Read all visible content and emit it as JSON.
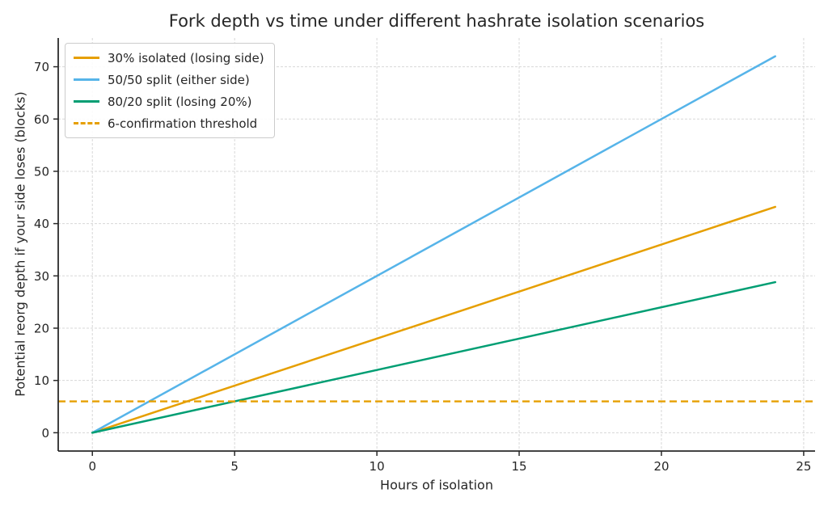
{
  "figure": {
    "title": "Fork depth vs time under different hashrate isolation scenarios"
  },
  "chart_data": {
    "type": "line",
    "title": "Fork depth vs time under different hashrate isolation scenarios",
    "xlabel": "Hours of isolation",
    "ylabel": "Potential reorg depth if your side loses (blocks)",
    "x": [
      0,
      24
    ],
    "series": [
      {
        "name": "30% isolated (losing side)",
        "color": "#E69F00",
        "style": "solid",
        "values": [
          0,
          43.2
        ],
        "blocks_per_hour": 1.8
      },
      {
        "name": "50/50 split (either side)",
        "color": "#56B4E9",
        "style": "solid",
        "values": [
          0,
          72.0
        ],
        "blocks_per_hour": 3.0
      },
      {
        "name": "80/20 split (losing 20%)",
        "color": "#009E73",
        "style": "solid",
        "values": [
          0,
          28.8
        ],
        "blocks_per_hour": 1.2
      }
    ],
    "threshold": {
      "name": "6-confirmation threshold",
      "color": "#E69F00",
      "style": "dashed",
      "value": 6
    },
    "xticks": [
      0,
      5,
      10,
      15,
      20,
      25
    ],
    "yticks": [
      0,
      10,
      20,
      30,
      40,
      50,
      60,
      70
    ],
    "xlim": [
      -1.2,
      25.4
    ],
    "ylim": [
      -3.5,
      75.5
    ],
    "grid": true,
    "legend_position": "upper left"
  },
  "colors": {
    "text": "#262626",
    "grid": "#d7d7d7",
    "spine": "#2a2a2a",
    "background": "#ffffff",
    "legend_border": "#cccccc"
  }
}
